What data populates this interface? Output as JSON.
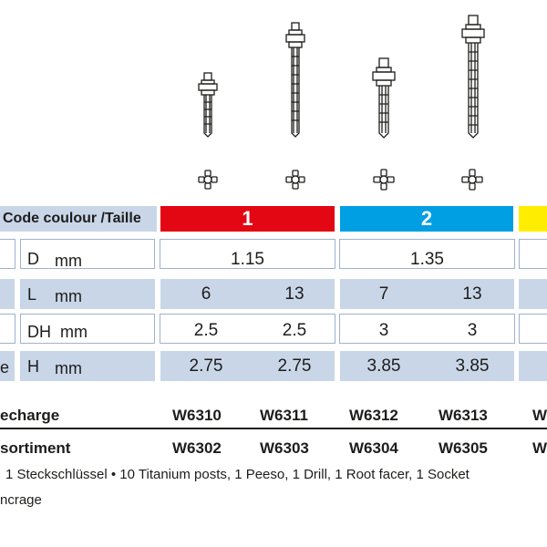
{
  "header": {
    "label": "Code coulour /Taille",
    "sizes": [
      {
        "label": "1",
        "color": "#e30613"
      },
      {
        "label": "2",
        "color": "#009fe3"
      },
      {
        "label": "",
        "color": "#ffed00"
      }
    ]
  },
  "rows": [
    {
      "prefix": "",
      "label": "D",
      "unit": "mm",
      "values": [
        "1.15",
        "1.35"
      ]
    },
    {
      "prefix": "",
      "label": "L",
      "unit": "mm",
      "values": [
        "6",
        "13",
        "7",
        "13"
      ]
    },
    {
      "prefix": "",
      "label": "DH",
      "unit": "mm",
      "values": [
        "2.5",
        "2.5",
        "3",
        "3"
      ]
    },
    {
      "prefix": "e",
      "label": "H",
      "unit": "mm",
      "values": [
        "2.75",
        "2.75",
        "3.85",
        "3.85"
      ]
    }
  ],
  "refill": {
    "label": "echarge",
    "codes": [
      "W6310",
      "W6311",
      "W6312",
      "W6313",
      "W"
    ]
  },
  "assortment": {
    "label": "sortiment",
    "codes": [
      "W6302",
      "W6303",
      "W6304",
      "W6305",
      "W"
    ]
  },
  "notes": {
    "line1": "1 Steckschlüssel  •  10 Titanium posts, 1 Peeso, 1 Drill, 1 Root facer, 1 Socket",
    "line2": "ncrage"
  }
}
